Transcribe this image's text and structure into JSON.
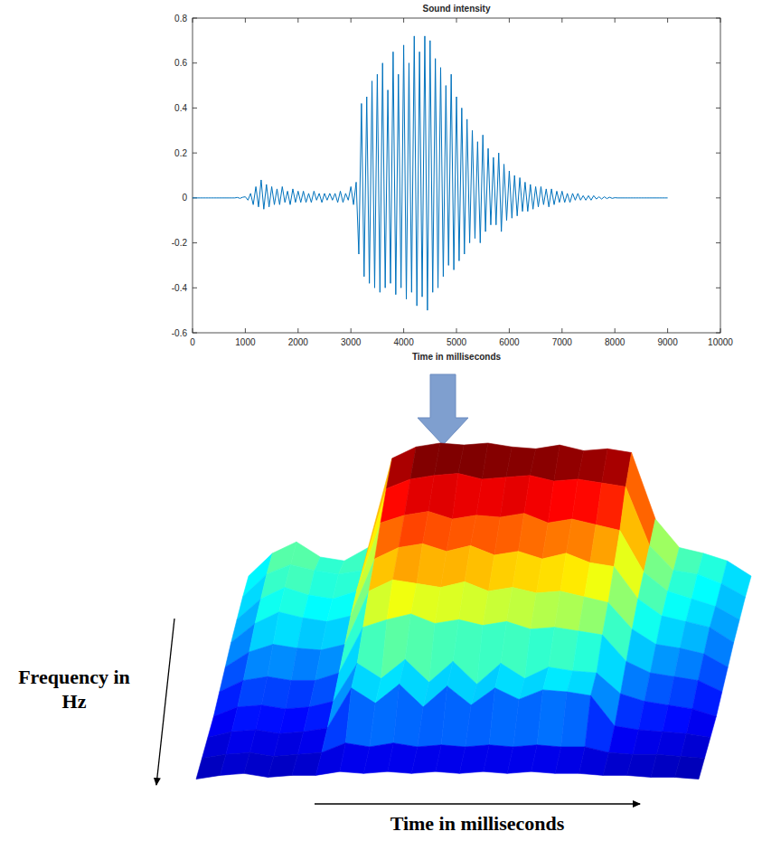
{
  "chart_data": [
    {
      "type": "line",
      "title": "Sound intensity",
      "x_label": "Time in milliseconds",
      "color": "#0072bd",
      "xlim": [
        0,
        10000
      ],
      "xticks": [
        0,
        1000,
        2000,
        3000,
        4000,
        5000,
        6000,
        7000,
        8000,
        9000,
        10000
      ],
      "ylim": [
        -0.6,
        0.8
      ],
      "yticks": [
        -0.6,
        -0.4,
        -0.2,
        0,
        0.2,
        0.4,
        0.6,
        0.8
      ],
      "grid": false,
      "x": [
        0,
        50,
        100,
        150,
        200,
        250,
        300,
        350,
        400,
        450,
        500,
        550,
        600,
        650,
        700,
        750,
        800,
        850,
        900,
        950,
        1000,
        1050,
        1100,
        1150,
        1200,
        1250,
        1300,
        1350,
        1400,
        1450,
        1500,
        1550,
        1600,
        1650,
        1700,
        1750,
        1800,
        1850,
        1900,
        1950,
        2000,
        2050,
        2100,
        2150,
        2200,
        2250,
        2300,
        2350,
        2400,
        2450,
        2500,
        2550,
        2600,
        2650,
        2700,
        2750,
        2800,
        2850,
        2900,
        2950,
        3000,
        3050,
        3100,
        3150,
        3200,
        3250,
        3300,
        3350,
        3400,
        3450,
        3500,
        3550,
        3600,
        3650,
        3700,
        3750,
        3800,
        3850,
        3900,
        3950,
        4000,
        4050,
        4100,
        4150,
        4200,
        4250,
        4300,
        4350,
        4400,
        4450,
        4500,
        4550,
        4600,
        4650,
        4700,
        4750,
        4800,
        4850,
        4900,
        4950,
        5000,
        5050,
        5100,
        5150,
        5200,
        5250,
        5300,
        5350,
        5400,
        5450,
        5500,
        5550,
        5600,
        5650,
        5700,
        5750,
        5800,
        5850,
        5900,
        5950,
        6000,
        6050,
        6100,
        6150,
        6200,
        6250,
        6300,
        6350,
        6400,
        6450,
        6500,
        6550,
        6600,
        6650,
        6700,
        6750,
        6800,
        6850,
        6900,
        6950,
        7000,
        7050,
        7100,
        7150,
        7200,
        7250,
        7300,
        7350,
        7400,
        7450,
        7500,
        7550,
        7600,
        7650,
        7700,
        7750,
        7800,
        7850,
        7900,
        7950,
        8000,
        8050,
        8100,
        8150,
        8200,
        8250,
        8300,
        8350,
        8400,
        8450,
        8500,
        8550,
        8600,
        8650,
        8700,
        8750,
        8800,
        8850,
        8900,
        8950,
        9000
      ],
      "values": [
        0,
        0,
        0,
        0,
        0,
        0,
        0,
        0,
        0,
        0,
        0,
        0,
        0,
        0,
        0,
        0,
        0,
        0.002,
        -0.002,
        0.003,
        0.005,
        -0.01,
        0.02,
        -0.03,
        0.05,
        -0.04,
        0.08,
        -0.05,
        0.06,
        -0.04,
        0.05,
        -0.03,
        0.04,
        -0.03,
        0.05,
        -0.02,
        0.03,
        -0.03,
        0.04,
        -0.02,
        0.03,
        -0.02,
        0.03,
        -0.02,
        0.02,
        -0.02,
        0.03,
        -0.01,
        0.02,
        -0.02,
        0.02,
        -0.01,
        0.02,
        -0.01,
        0.02,
        -0.02,
        0.03,
        -0.02,
        0.02,
        -0.01,
        0.05,
        -0.03,
        0.07,
        -0.25,
        0.42,
        -0.35,
        0.45,
        -0.38,
        0.52,
        -0.4,
        0.55,
        -0.42,
        0.6,
        -0.4,
        0.48,
        -0.38,
        0.65,
        -0.43,
        0.55,
        -0.4,
        0.68,
        -0.45,
        0.6,
        -0.42,
        0.72,
        -0.48,
        0.65,
        -0.44,
        0.72,
        -0.5,
        0.7,
        -0.42,
        0.62,
        -0.4,
        0.58,
        -0.35,
        0.5,
        -0.3,
        0.55,
        -0.32,
        0.45,
        -0.28,
        0.4,
        -0.25,
        0.35,
        -0.2,
        0.3,
        -0.18,
        0.25,
        -0.2,
        0.28,
        -0.15,
        0.22,
        -0.12,
        0.18,
        -0.12,
        0.2,
        -0.15,
        0.15,
        -0.1,
        0.12,
        -0.09,
        0.1,
        -0.08,
        0.09,
        -0.06,
        0.07,
        -0.06,
        0.06,
        -0.05,
        0.05,
        -0.04,
        0.05,
        -0.03,
        0.04,
        -0.04,
        0.04,
        -0.03,
        0.03,
        -0.02,
        0.03,
        -0.02,
        0.02,
        -0.02,
        0.02,
        -0.01,
        0.02,
        -0.01,
        0.01,
        -0.01,
        0.01,
        -0.01,
        0.01,
        -0.005,
        0.005,
        -0.005,
        0.005,
        -0.003,
        0.003,
        -0.002,
        0.001,
        0,
        0,
        0,
        0,
        0,
        0,
        0,
        0,
        0,
        0,
        0,
        0,
        0,
        0,
        0,
        0,
        0,
        0,
        0,
        0
      ]
    },
    {
      "type": "surface",
      "x_label": "Time in milliseconds",
      "y_label": "Frequency in Hz",
      "tick_labels": false,
      "zlim": [
        0,
        1
      ],
      "z": [
        [
          0.3,
          0.42,
          0.48,
          0.4,
          0.38,
          0.45,
          0.92,
          0.98,
          1.0,
          0.99,
          1.0,
          0.98,
          0.97,
          0.99,
          0.96,
          0.97,
          0.95,
          0.6,
          0.45,
          0.42,
          0.38,
          0.3
        ],
        [
          0.28,
          0.4,
          0.45,
          0.42,
          0.4,
          0.42,
          0.85,
          0.9,
          0.92,
          0.93,
          0.9,
          0.91,
          0.92,
          0.89,
          0.9,
          0.88,
          0.86,
          0.55,
          0.42,
          0.4,
          0.35,
          0.28
        ],
        [
          0.25,
          0.36,
          0.42,
          0.38,
          0.36,
          0.4,
          0.76,
          0.8,
          0.82,
          0.78,
          0.8,
          0.79,
          0.81,
          0.76,
          0.78,
          0.75,
          0.72,
          0.5,
          0.4,
          0.36,
          0.32,
          0.25
        ],
        [
          0.22,
          0.32,
          0.38,
          0.35,
          0.33,
          0.36,
          0.66,
          0.72,
          0.74,
          0.7,
          0.73,
          0.68,
          0.7,
          0.66,
          0.69,
          0.64,
          0.62,
          0.45,
          0.36,
          0.33,
          0.3,
          0.22
        ],
        [
          0.18,
          0.26,
          0.3,
          0.28,
          0.27,
          0.3,
          0.58,
          0.64,
          0.62,
          0.6,
          0.63,
          0.58,
          0.6,
          0.57,
          0.58,
          0.55,
          0.52,
          0.38,
          0.3,
          0.28,
          0.25,
          0.18
        ],
        [
          0.14,
          0.2,
          0.22,
          0.2,
          0.2,
          0.24,
          0.48,
          0.52,
          0.55,
          0.5,
          0.52,
          0.49,
          0.51,
          0.47,
          0.48,
          0.46,
          0.44,
          0.3,
          0.24,
          0.22,
          0.2,
          0.14
        ],
        [
          0.1,
          0.15,
          0.16,
          0.14,
          0.15,
          0.18,
          0.38,
          0.3,
          0.4,
          0.28,
          0.39,
          0.27,
          0.38,
          0.3,
          0.36,
          0.34,
          0.33,
          0.22,
          0.18,
          0.16,
          0.14,
          0.1
        ],
        [
          0.08,
          0.11,
          0.12,
          0.1,
          0.11,
          0.13,
          0.34,
          0.26,
          0.36,
          0.24,
          0.35,
          0.25,
          0.34,
          0.28,
          0.33,
          0.32,
          0.3,
          0.14,
          0.12,
          0.11,
          0.1,
          0.08
        ],
        [
          0.06,
          0.08,
          0.09,
          0.07,
          0.08,
          0.09,
          0.14,
          0.12,
          0.14,
          0.12,
          0.13,
          0.12,
          0.13,
          0.12,
          0.13,
          0.12,
          0.12,
          0.09,
          0.08,
          0.08,
          0.07,
          0.06
        ],
        [
          0.04,
          0.06,
          0.07,
          0.05,
          0.06,
          0.06,
          0.08,
          0.07,
          0.08,
          0.07,
          0.08,
          0.07,
          0.08,
          0.07,
          0.08,
          0.07,
          0.07,
          0.06,
          0.06,
          0.05,
          0.05,
          0.04
        ]
      ]
    }
  ]
}
